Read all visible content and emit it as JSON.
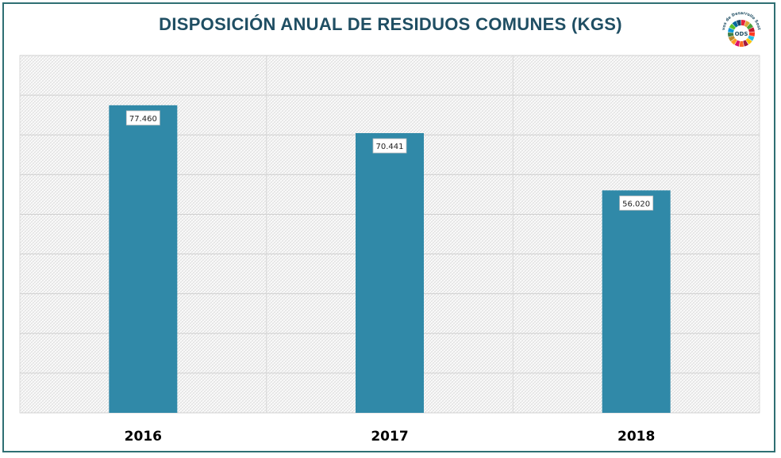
{
  "logo": {
    "label": "ODS",
    "arc_text": "Objetivos de Desarrollo Sostenible",
    "icon": "sdg-wheel-icon"
  },
  "chart_data": {
    "type": "bar",
    "title": "DISPOSICIÓN ANUAL DE RESIDUOS COMUNES (KGS)",
    "xlabel": "",
    "ylabel": "",
    "categories": [
      "2016",
      "2017",
      "2018"
    ],
    "values": [
      77460,
      70441,
      56020
    ],
    "data_labels": [
      "77.460",
      "70.441",
      "56.020"
    ],
    "ylim": [
      0,
      90000
    ],
    "grid": true,
    "bar_color": "#3089a8",
    "legend": "none"
  }
}
